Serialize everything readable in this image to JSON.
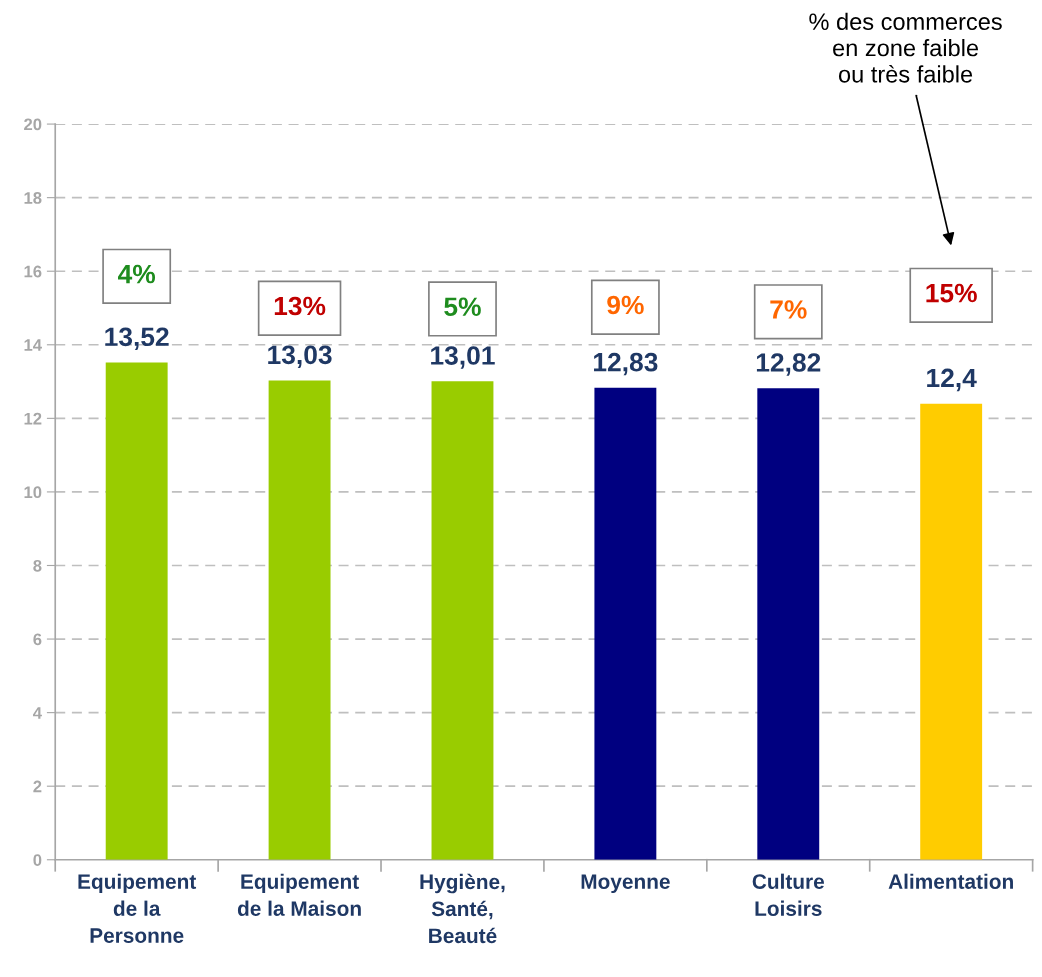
{
  "chart_data": {
    "type": "bar",
    "categories": [
      "Equipement\nde la\nPersonne",
      "Equipement\nde la Maison",
      "Hygiène,\nSanté,\nBeauté",
      "Moyenne",
      "Culture\nLoisirs",
      "Alimentation"
    ],
    "values": [
      13.52,
      13.03,
      13.01,
      12.83,
      12.82,
      12.4
    ],
    "value_labels": [
      "13,52",
      "13,03",
      "13,01",
      "12,83",
      "12,82",
      "12,4"
    ],
    "colors": [
      "#99cc00",
      "#99cc00",
      "#99cc00",
      "#000080",
      "#000080",
      "#ffcc00"
    ],
    "ylim": [
      0,
      20
    ],
    "yticks": [
      0,
      2,
      4,
      6,
      8,
      10,
      12,
      14,
      16,
      18,
      20
    ],
    "grid": "y",
    "annotations": [
      "4%",
      "13%",
      "5%",
      "9%",
      "7%",
      "15%",
      "% des commerces\nen zone faible\nou très faible"
    ]
  }
}
